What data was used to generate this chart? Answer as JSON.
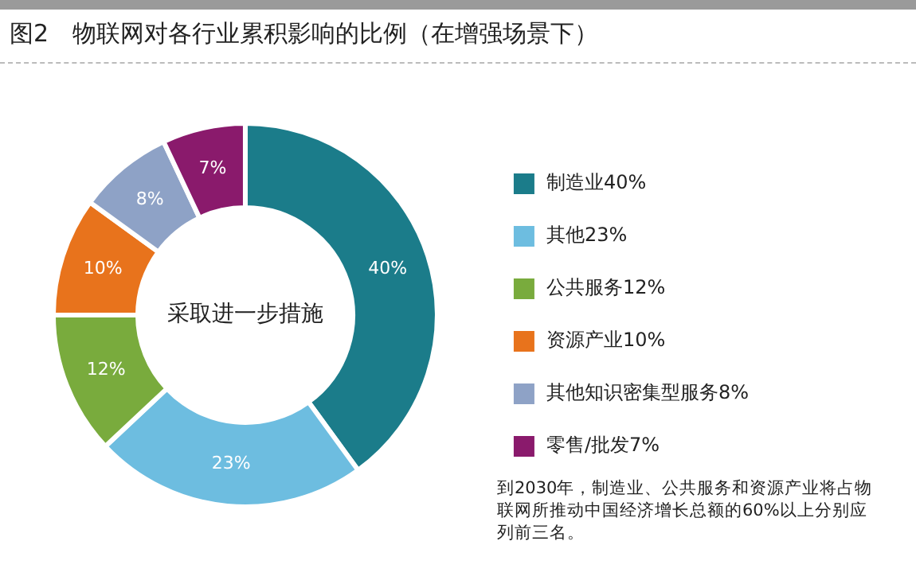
{
  "chart_data": {
    "type": "donut",
    "title": "图2　物联网对各行业累积影响的比例（在增强场景下）",
    "categories": [
      "制造业40%",
      "其他23%",
      "公共服务12%",
      "资源产业10%",
      "其他知识密集型服务8%",
      "零售/批发7%"
    ],
    "values": [
      40,
      23,
      12,
      10,
      8,
      7
    ],
    "value_labels": [
      "40%",
      "23%",
      "12%",
      "10%",
      "8%",
      "7%"
    ],
    "colors": [
      "#1b7c8a",
      "#6dbde0",
      "#79ab3d",
      "#e8731c",
      "#8ea2c6",
      "#8a1a6c"
    ],
    "legend": "right",
    "annotations": [
      "采取进一步措施",
      "到2030年，制造业、公共服务和资源产业将占物联网所推动中国经济增长总额的60%以上分别应列前三名。"
    ]
  }
}
